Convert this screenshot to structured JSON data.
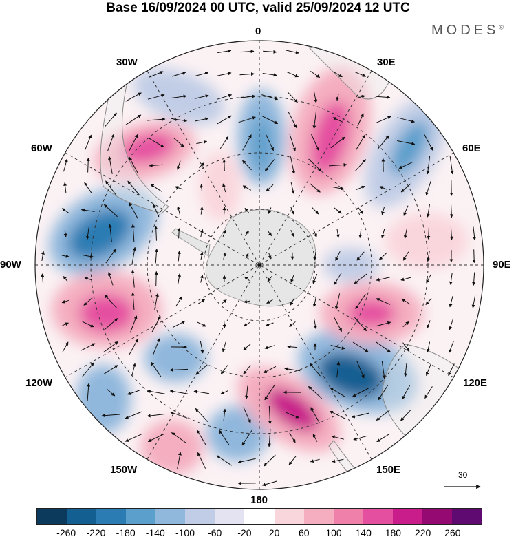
{
  "title": "Base 16/09/2024 00 UTC, valid 25/09/2024 12 UTC",
  "brand": "MODES",
  "brand_mark": "®",
  "longitude_labels": {
    "lon_0": "0",
    "lon_30e": "30E",
    "lon_60e": "60E",
    "lon_90e": "90E",
    "lon_120e": "120E",
    "lon_150e": "150E",
    "lon_180": "180",
    "lon_150w": "150W",
    "lon_120w": "120W",
    "lon_90w": "90W",
    "lon_60w": "60W",
    "lon_30w": "30W"
  },
  "reference_vector": {
    "value": "30"
  },
  "colorbar": {
    "colors": [
      "#0c3a5c",
      "#145f92",
      "#2b7cb3",
      "#5b9fcc",
      "#90b7dc",
      "#c1cde6",
      "#e3e3f2",
      "#ffffff",
      "#f9d6dc",
      "#f4aebf",
      "#ef80aa",
      "#e54fa0",
      "#c81d8a",
      "#950a72",
      "#5e0a70"
    ],
    "ticks": [
      "-260",
      "-220",
      "-180",
      "-140",
      "-100",
      "-60",
      "-20",
      "20",
      "60",
      "100",
      "140",
      "180",
      "220",
      "260"
    ]
  },
  "colors": {
    "antarctica": "#e6e6e6",
    "grid": "#333333",
    "border": "#222222"
  }
}
